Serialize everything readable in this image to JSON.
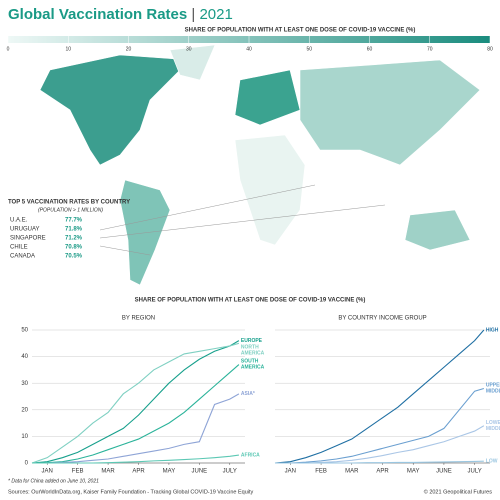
{
  "header": {
    "title": "Global Vaccination Rates",
    "year": "2021"
  },
  "map": {
    "scale_title": "SHARE OF POPULATION WITH AT LEAST ONE DOSE OF COVID-19 VACCINE (%)",
    "lim": [
      0,
      80
    ],
    "ticks": [
      0,
      10,
      20,
      30,
      40,
      50,
      60,
      70,
      80
    ]
  },
  "top5": {
    "title": "TOP 5 VACCINATION RATES BY COUNTRY",
    "subtitle": "(POPULATION > 1 MILLION)",
    "rows": [
      [
        "U.A.E.",
        "77.7%"
      ],
      [
        "URUGUAY",
        "71.8%"
      ],
      [
        "SINGAPORE",
        "71.2%"
      ],
      [
        "CHILE",
        "70.8%"
      ],
      [
        "CANADA",
        "70.5%"
      ]
    ]
  },
  "charts_title": "SHARE OF POPULATION WITH AT LEAST ONE DOSE OF COVID-19 VACCINE (%)",
  "chart_data": [
    {
      "type": "line",
      "title": "BY REGION",
      "x": [
        0,
        0.5,
        1,
        1.5,
        2,
        2.5,
        3,
        3.5,
        4,
        4.5,
        5,
        5.5,
        6,
        6.5,
        6.8
      ],
      "xlim": [
        0,
        7
      ],
      "xticks": [
        {
          "value": 0.5,
          "label": "JAN"
        },
        {
          "value": 1.5,
          "label": "FEB"
        },
        {
          "value": 2.5,
          "label": "MAR"
        },
        {
          "value": 3.5,
          "label": "APR"
        },
        {
          "value": 4.5,
          "label": "MAY"
        },
        {
          "value": 5.5,
          "label": "JUNE"
        },
        {
          "value": 6.5,
          "label": "JULY"
        }
      ],
      "ylim": [
        0,
        50
      ],
      "yticks": [
        0,
        10,
        20,
        30,
        40,
        50
      ],
      "ytick_labels": true,
      "series": [
        {
          "name": "EUROPE",
          "color": "#17a08c",
          "values": [
            0,
            0.5,
            2,
            4,
            7,
            10,
            13,
            18,
            24,
            30,
            35,
            39,
            42,
            44,
            46
          ]
        },
        {
          "name": "NORTH AMERICA",
          "color": "#7fd0c2",
          "values": [
            0,
            2,
            6,
            10,
            15,
            19,
            26,
            30,
            35,
            38,
            41,
            42,
            43,
            44,
            45
          ]
        },
        {
          "name": "SOUTH AMERICA",
          "color": "#2bb39a",
          "values": [
            0,
            0.1,
            0.5,
            1.5,
            3,
            5,
            7,
            9,
            12,
            15,
            19,
            24,
            29,
            34,
            37
          ]
        },
        {
          "name": "ASIA*",
          "color": "#8ea4d6",
          "values": [
            0,
            0,
            0.2,
            0.5,
            1,
            1.5,
            2.5,
            3.5,
            4.5,
            5.5,
            7,
            8,
            22,
            24,
            26
          ]
        },
        {
          "name": "AFRICA",
          "color": "#5cc8b4",
          "values": [
            0,
            0,
            0,
            0,
            0,
            0.1,
            0.3,
            0.5,
            0.8,
            1,
            1.3,
            1.6,
            2,
            2.5,
            3
          ]
        }
      ]
    },
    {
      "type": "line",
      "title": "BY COUNTRY INCOME GROUP",
      "x": [
        0,
        0.5,
        1,
        1.5,
        2,
        2.5,
        3,
        3.5,
        4,
        4.5,
        5,
        5.5,
        6,
        6.5,
        6.8
      ],
      "xlim": [
        0,
        7
      ],
      "xticks": [
        {
          "value": 0.5,
          "label": "JAN"
        },
        {
          "value": 1.5,
          "label": "FEB"
        },
        {
          "value": 2.5,
          "label": "MAR"
        },
        {
          "value": 3.5,
          "label": "APR"
        },
        {
          "value": 4.5,
          "label": "MAY"
        },
        {
          "value": 5.5,
          "label": "JUNE"
        },
        {
          "value": 6.5,
          "label": "JULY"
        }
      ],
      "ylim": [
        0,
        50
      ],
      "yticks": [
        0,
        10,
        20,
        30,
        40,
        50
      ],
      "ytick_labels": false,
      "series": [
        {
          "name": "HIGH",
          "color": "#1f6fa3",
          "values": [
            0,
            0.5,
            2,
            4,
            6.5,
            9,
            13,
            17,
            21,
            26,
            31,
            36,
            41,
            46,
            50
          ]
        },
        {
          "name": "UPPER MIDDLE*",
          "color": "#6a9fd0",
          "values": [
            0,
            0,
            0.3,
            0.8,
            1.5,
            2.5,
            4,
            5.5,
            7,
            8.5,
            10,
            13,
            20,
            27,
            28
          ]
        },
        {
          "name": "LOWER MIDDLE",
          "color": "#aac6e6",
          "values": [
            0,
            0,
            0,
            0.2,
            0.5,
            1,
            1.8,
            2.8,
            4,
            5,
            6.5,
            8,
            10,
            12,
            14
          ]
        },
        {
          "name": "LOW",
          "color": "#9ac6e0",
          "values": [
            0,
            0,
            0,
            0,
            0,
            0,
            0.1,
            0.1,
            0.2,
            0.2,
            0.3,
            0.4,
            0.5,
            0.6,
            0.7
          ]
        }
      ]
    }
  ],
  "footnote": "* Data for China added on June 10, 2021",
  "sources": "Sources: OurWorldInData.org, Kaiser Family Foundation - Tracking Global COVID-19 Vaccine Equity",
  "copyright": "© 2021 Geopolitical Futures"
}
